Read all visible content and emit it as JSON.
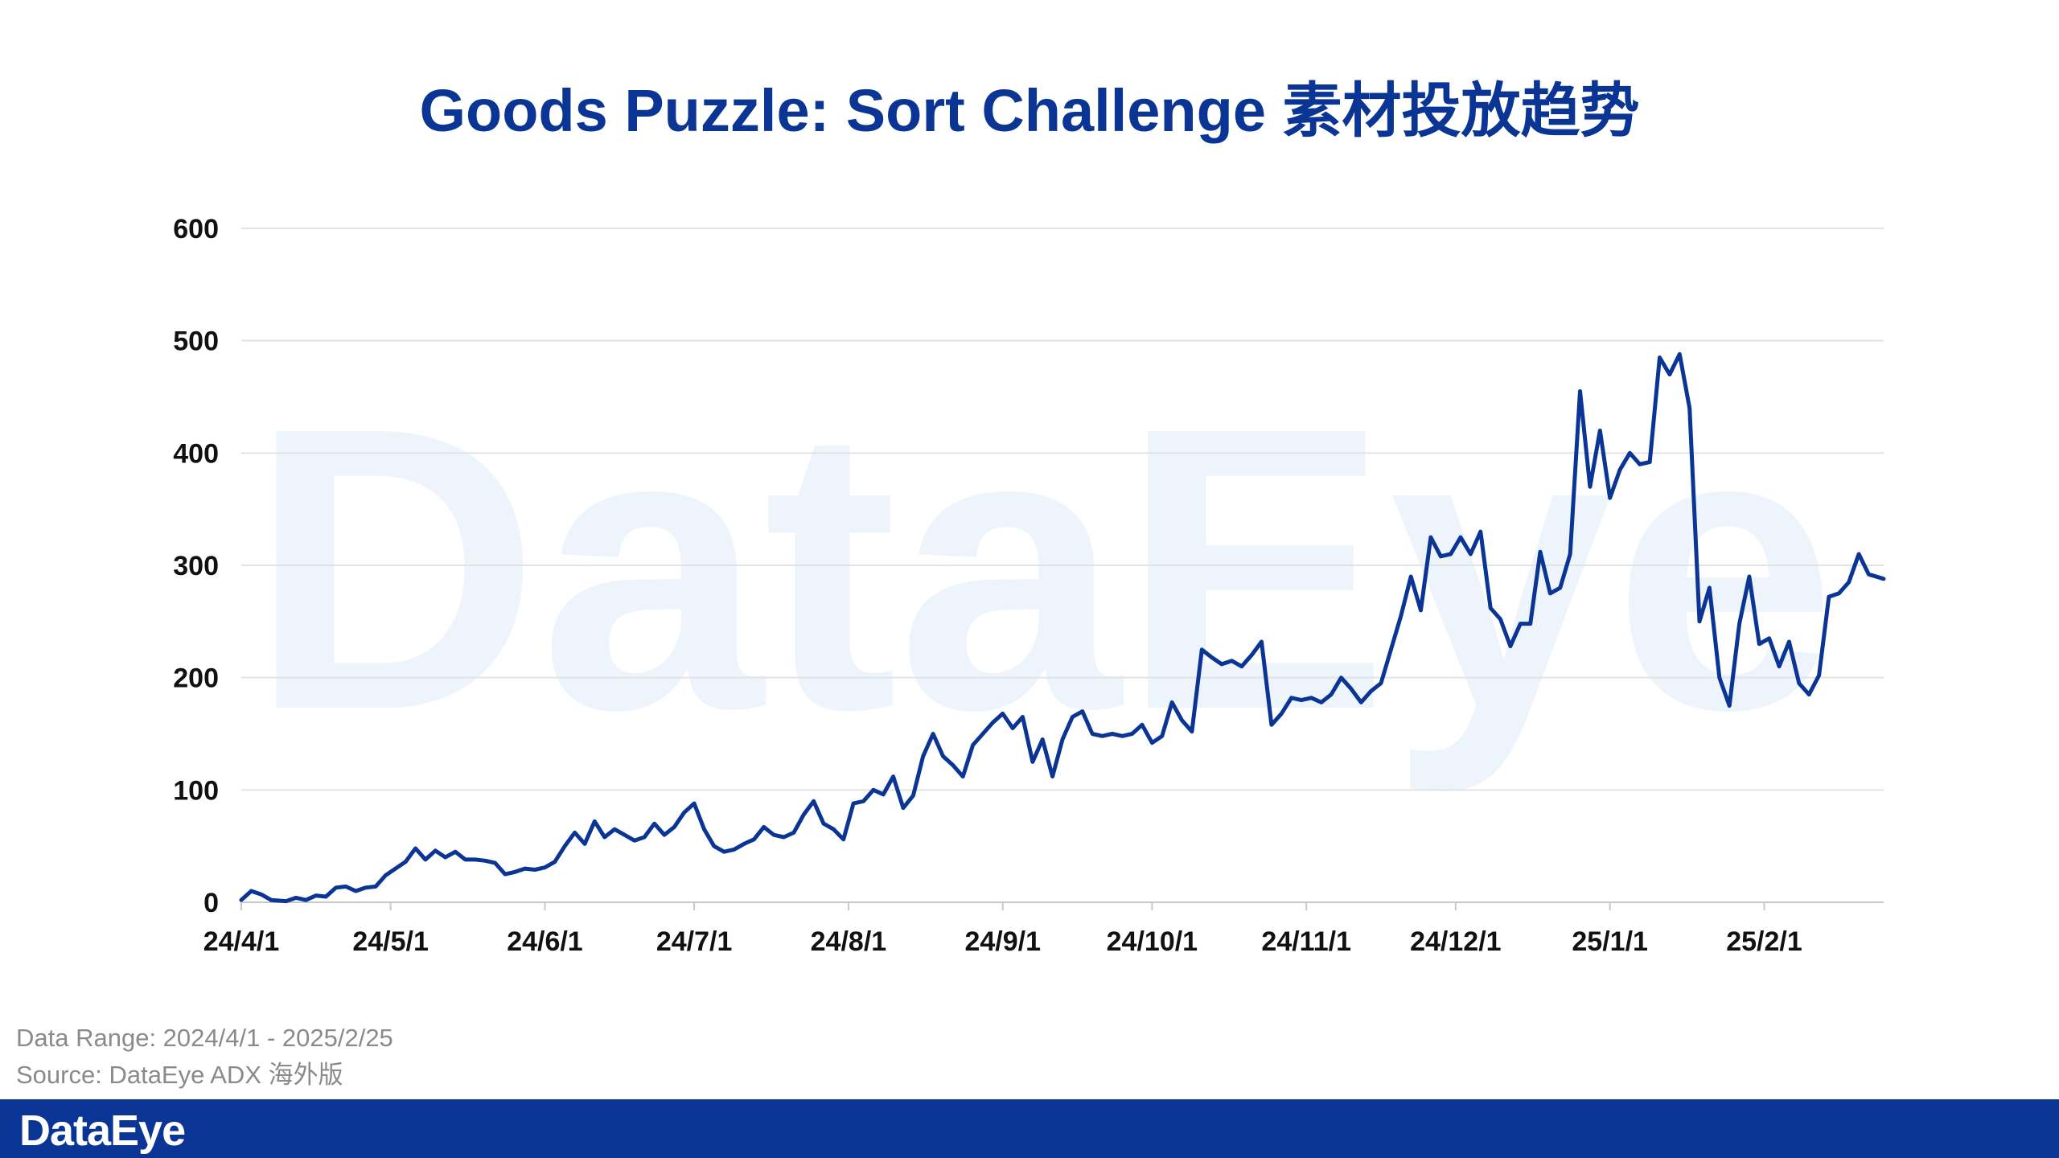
{
  "title": "Goods Puzzle: Sort Challenge 素材投放趋势",
  "watermark_text": "DataEye",
  "footnote": {
    "data_range": "Data Range: 2024/4/1 - 2025/2/25",
    "source": "Source: DataEye ADX 海外版"
  },
  "footer": {
    "logo_text": "DataEye"
  },
  "colors": {
    "title": "#0a3594",
    "line": "#0a3594",
    "footer": "#0a3594",
    "grid": "#e3e3e3"
  },
  "chart_data": {
    "type": "line",
    "title": "Goods Puzzle: Sort Challenge 素材投放趋势",
    "xlabel": "",
    "ylabel": "",
    "ylim": [
      0,
      600
    ],
    "yticks": [
      0,
      100,
      200,
      300,
      400,
      500,
      600
    ],
    "xticks": [
      "24/4/1",
      "24/5/1",
      "24/6/1",
      "24/7/1",
      "24/8/1",
      "24/9/1",
      "24/10/1",
      "24/11/1",
      "24/12/1",
      "25/1/1",
      "25/2/1"
    ],
    "xtick_dates": [
      "2024-04-01",
      "2024-05-01",
      "2024-06-01",
      "2024-07-01",
      "2024-08-01",
      "2024-09-01",
      "2024-10-01",
      "2024-11-01",
      "2024-12-01",
      "2025-01-01",
      "2025-02-01"
    ],
    "grid": true,
    "x_range": [
      "2024-04-01",
      "2025-02-25"
    ],
    "series": [
      {
        "points": [
          [
            "2024-04-01",
            2
          ],
          [
            "2024-04-03",
            10
          ],
          [
            "2024-04-05",
            7
          ],
          [
            "2024-04-07",
            2
          ],
          [
            "2024-04-10",
            1
          ],
          [
            "2024-04-12",
            4
          ],
          [
            "2024-04-14",
            2
          ],
          [
            "2024-04-16",
            6
          ],
          [
            "2024-04-18",
            5
          ],
          [
            "2024-04-20",
            13
          ],
          [
            "2024-04-22",
            14
          ],
          [
            "2024-04-24",
            10
          ],
          [
            "2024-04-26",
            13
          ],
          [
            "2024-04-28",
            14
          ],
          [
            "2024-04-30",
            24
          ],
          [
            "2024-05-02",
            30
          ],
          [
            "2024-05-04",
            36
          ],
          [
            "2024-05-06",
            48
          ],
          [
            "2024-05-08",
            38
          ],
          [
            "2024-05-10",
            46
          ],
          [
            "2024-05-12",
            40
          ],
          [
            "2024-05-14",
            45
          ],
          [
            "2024-05-16",
            38
          ],
          [
            "2024-05-18",
            38
          ],
          [
            "2024-05-20",
            37
          ],
          [
            "2024-05-22",
            35
          ],
          [
            "2024-05-24",
            25
          ],
          [
            "2024-05-26",
            27
          ],
          [
            "2024-05-28",
            30
          ],
          [
            "2024-05-30",
            29
          ],
          [
            "2024-06-01",
            31
          ],
          [
            "2024-06-03",
            36
          ],
          [
            "2024-06-05",
            50
          ],
          [
            "2024-06-07",
            62
          ],
          [
            "2024-06-09",
            52
          ],
          [
            "2024-06-11",
            72
          ],
          [
            "2024-06-13",
            58
          ],
          [
            "2024-06-15",
            65
          ],
          [
            "2024-06-17",
            60
          ],
          [
            "2024-06-19",
            55
          ],
          [
            "2024-06-21",
            58
          ],
          [
            "2024-06-23",
            70
          ],
          [
            "2024-06-25",
            60
          ],
          [
            "2024-06-27",
            67
          ],
          [
            "2024-06-29",
            80
          ],
          [
            "2024-07-01",
            88
          ],
          [
            "2024-07-03",
            65
          ],
          [
            "2024-07-05",
            50
          ],
          [
            "2024-07-07",
            45
          ],
          [
            "2024-07-09",
            47
          ],
          [
            "2024-07-11",
            52
          ],
          [
            "2024-07-13",
            56
          ],
          [
            "2024-07-15",
            67
          ],
          [
            "2024-07-17",
            60
          ],
          [
            "2024-07-19",
            58
          ],
          [
            "2024-07-21",
            62
          ],
          [
            "2024-07-23",
            78
          ],
          [
            "2024-07-25",
            90
          ],
          [
            "2024-07-27",
            70
          ],
          [
            "2024-07-29",
            65
          ],
          [
            "2024-07-31",
            56
          ],
          [
            "2024-08-02",
            88
          ],
          [
            "2024-08-04",
            90
          ],
          [
            "2024-08-06",
            100
          ],
          [
            "2024-08-08",
            96
          ],
          [
            "2024-08-10",
            112
          ],
          [
            "2024-08-12",
            84
          ],
          [
            "2024-08-14",
            95
          ],
          [
            "2024-08-16",
            130
          ],
          [
            "2024-08-18",
            150
          ],
          [
            "2024-08-20",
            130
          ],
          [
            "2024-08-22",
            122
          ],
          [
            "2024-08-24",
            112
          ],
          [
            "2024-08-26",
            140
          ],
          [
            "2024-08-28",
            150
          ],
          [
            "2024-08-30",
            160
          ],
          [
            "2024-09-01",
            168
          ],
          [
            "2024-09-03",
            155
          ],
          [
            "2024-09-05",
            165
          ],
          [
            "2024-09-07",
            125
          ],
          [
            "2024-09-09",
            145
          ],
          [
            "2024-09-11",
            112
          ],
          [
            "2024-09-13",
            145
          ],
          [
            "2024-09-15",
            165
          ],
          [
            "2024-09-17",
            170
          ],
          [
            "2024-09-19",
            150
          ],
          [
            "2024-09-21",
            148
          ],
          [
            "2024-09-23",
            150
          ],
          [
            "2024-09-25",
            148
          ],
          [
            "2024-09-27",
            150
          ],
          [
            "2024-09-29",
            158
          ],
          [
            "2024-10-01",
            142
          ],
          [
            "2024-10-03",
            148
          ],
          [
            "2024-10-05",
            178
          ],
          [
            "2024-10-07",
            162
          ],
          [
            "2024-10-09",
            152
          ],
          [
            "2024-10-11",
            225
          ],
          [
            "2024-10-13",
            218
          ],
          [
            "2024-10-15",
            212
          ],
          [
            "2024-10-17",
            215
          ],
          [
            "2024-10-19",
            210
          ],
          [
            "2024-10-21",
            220
          ],
          [
            "2024-10-23",
            232
          ],
          [
            "2024-10-25",
            158
          ],
          [
            "2024-10-27",
            168
          ],
          [
            "2024-10-29",
            182
          ],
          [
            "2024-10-31",
            180
          ],
          [
            "2024-11-02",
            182
          ],
          [
            "2024-11-04",
            178
          ],
          [
            "2024-11-06",
            185
          ],
          [
            "2024-11-08",
            200
          ],
          [
            "2024-11-10",
            190
          ],
          [
            "2024-11-12",
            178
          ],
          [
            "2024-11-14",
            188
          ],
          [
            "2024-11-16",
            195
          ],
          [
            "2024-11-18",
            225
          ],
          [
            "2024-11-20",
            255
          ],
          [
            "2024-11-22",
            290
          ],
          [
            "2024-11-24",
            260
          ],
          [
            "2024-11-26",
            325
          ],
          [
            "2024-11-28",
            308
          ],
          [
            "2024-11-30",
            310
          ],
          [
            "2024-12-02",
            325
          ],
          [
            "2024-12-04",
            310
          ],
          [
            "2024-12-06",
            330
          ],
          [
            "2024-12-08",
            262
          ],
          [
            "2024-12-10",
            252
          ],
          [
            "2024-12-12",
            228
          ],
          [
            "2024-12-14",
            248
          ],
          [
            "2024-12-16",
            248
          ],
          [
            "2024-12-18",
            312
          ],
          [
            "2024-12-20",
            275
          ],
          [
            "2024-12-22",
            280
          ],
          [
            "2024-12-24",
            310
          ],
          [
            "2024-12-26",
            455
          ],
          [
            "2024-12-28",
            370
          ],
          [
            "2024-12-30",
            420
          ],
          [
            "2025-01-01",
            360
          ],
          [
            "2025-01-03",
            385
          ],
          [
            "2025-01-05",
            400
          ],
          [
            "2025-01-07",
            390
          ],
          [
            "2025-01-09",
            392
          ],
          [
            "2025-01-11",
            485
          ],
          [
            "2025-01-13",
            470
          ],
          [
            "2025-01-15",
            488
          ],
          [
            "2025-01-17",
            440
          ],
          [
            "2025-01-19",
            250
          ],
          [
            "2025-01-21",
            280
          ],
          [
            "2025-01-23",
            200
          ],
          [
            "2025-01-25",
            175
          ],
          [
            "2025-01-27",
            248
          ],
          [
            "2025-01-29",
            290
          ],
          [
            "2025-01-31",
            230
          ],
          [
            "2025-02-02",
            235
          ],
          [
            "2025-02-04",
            210
          ],
          [
            "2025-02-06",
            232
          ],
          [
            "2025-02-08",
            195
          ],
          [
            "2025-02-10",
            185
          ],
          [
            "2025-02-12",
            202
          ],
          [
            "2025-02-14",
            272
          ],
          [
            "2025-02-16",
            275
          ],
          [
            "2025-02-18",
            285
          ],
          [
            "2025-02-20",
            310
          ],
          [
            "2025-02-22",
            292
          ],
          [
            "2025-02-25",
            288
          ]
        ]
      }
    ]
  }
}
